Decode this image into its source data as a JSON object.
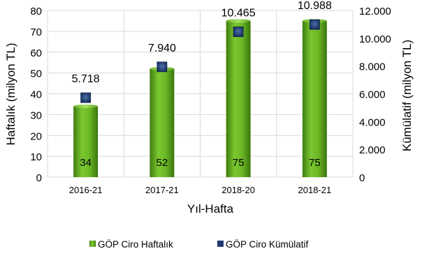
{
  "chart_data": {
    "type": "bar",
    "title": "",
    "xlabel": "Yıl-Hafta",
    "ylabel": "Haftalık (milyon TL)",
    "y2label": "Kümülatif (milyon TL)",
    "categories": [
      "2016-21",
      "2017-21",
      "2018-20",
      "2018-21"
    ],
    "ylim": [
      0,
      80
    ],
    "y2lim": [
      0,
      12000
    ],
    "yticks": [
      "0",
      "10",
      "20",
      "30",
      "40",
      "50",
      "60",
      "70",
      "80"
    ],
    "y2ticks": [
      "0",
      "2.000",
      "4.000",
      "6.000",
      "8.000",
      "10.000",
      "12.000"
    ],
    "grid": true,
    "legend_position": "bottom",
    "series": [
      {
        "name": "GÖP Ciro Haftalık",
        "kind": "bar",
        "axis": "left",
        "color": "#5aa417",
        "values": [
          34,
          52,
          75,
          75
        ],
        "labels": [
          "34",
          "52",
          "75",
          "75"
        ]
      },
      {
        "name": "GÖP Ciro Kümülatif",
        "kind": "marker",
        "axis": "right",
        "color": "#1f3a73",
        "values": [
          5718,
          7940,
          10465,
          10988
        ],
        "labels": [
          "5.718",
          "7.940",
          "10.465",
          "10.988"
        ]
      }
    ]
  }
}
